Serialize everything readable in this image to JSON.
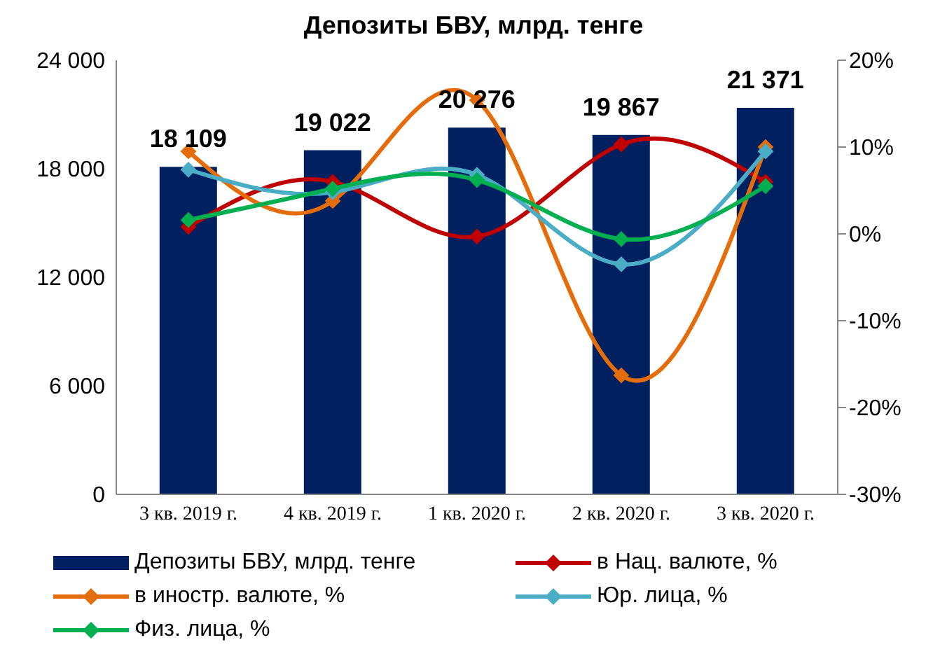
{
  "chart_data": {
    "type": "bar",
    "title": "Депозиты БВУ, млрд. тенге",
    "categories": [
      "3 кв. 2019 г.",
      "4 кв. 2019 г.",
      "1 кв. 2020 г.",
      "2 кв. 2020 г.",
      "3 кв. 2020 г."
    ],
    "series": [
      {
        "name": "Депозиты БВУ, млрд. тенге",
        "color": "#002060",
        "values": [
          18109,
          19022,
          20276,
          19867,
          21371
        ],
        "value_labels": [
          "18 109",
          "19 022",
          "20 276",
          "19 867",
          "21 371"
        ]
      },
      {
        "name": "в Нац. валюте, %",
        "type": "line",
        "axis": "y2",
        "color": "#c00000",
        "values": [
          0.8,
          6.0,
          -0.3,
          10.3,
          6.0
        ]
      },
      {
        "name": "в иностр. валюте, %",
        "type": "line",
        "axis": "y2",
        "color": "#e46c0a",
        "values": [
          9.5,
          3.8,
          15.4,
          -16.3,
          10.0
        ]
      },
      {
        "name": "Юр. лица, %",
        "type": "line",
        "axis": "y2",
        "color": "#4bacc6",
        "values": [
          7.4,
          4.8,
          6.8,
          -3.5,
          9.5
        ]
      },
      {
        "name": "Физ. лица, %",
        "type": "line",
        "axis": "y2",
        "color": "#00b050",
        "values": [
          1.6,
          5.2,
          6.2,
          -0.6,
          5.5
        ]
      }
    ],
    "ylim": [
      0,
      24000
    ],
    "yticks": [
      {
        "value": 0,
        "label": "0"
      },
      {
        "value": 6000,
        "label": "6 000"
      },
      {
        "value": 12000,
        "label": "12 000"
      },
      {
        "value": 18000,
        "label": "18 000"
      },
      {
        "value": 24000,
        "label": "24 000"
      }
    ],
    "y2lim": [
      -30,
      20
    ],
    "y2ticks": [
      {
        "value": -30,
        "label": "-30%"
      },
      {
        "value": -20,
        "label": "-20%"
      },
      {
        "value": -10,
        "label": "-10%"
      },
      {
        "value": 0,
        "label": "0%"
      },
      {
        "value": 10,
        "label": "10%"
      },
      {
        "value": 20,
        "label": "20%"
      }
    ],
    "grid": false,
    "legend": "bottom",
    "marker": "diamond",
    "line_style": "solid"
  }
}
